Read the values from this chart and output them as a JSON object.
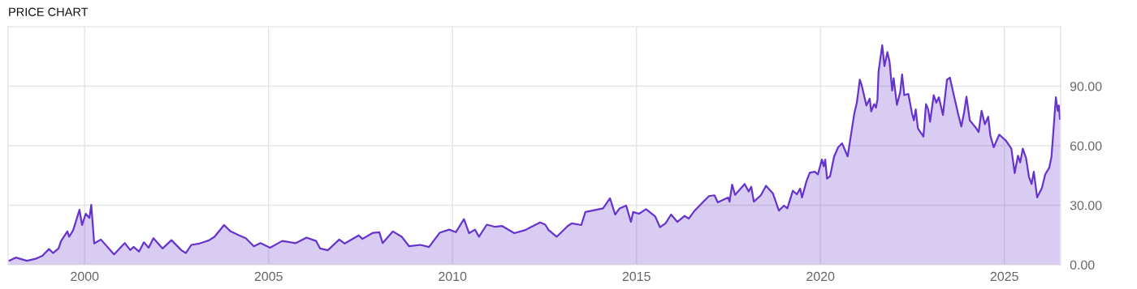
{
  "chart_data": {
    "type": "area",
    "title": "PRICE CHART",
    "x": [
      1997.95,
      1998.13,
      1998.43,
      1998.65,
      1998.85,
      1999.03,
      1999.14,
      1999.29,
      1999.36,
      1999.53,
      1999.58,
      1999.69,
      1999.86,
      1999.93,
      2000.03,
      2000.13,
      2000.18,
      2000.26,
      2000.44,
      2000.8,
      2001.09,
      2001.24,
      2001.33,
      2001.48,
      2001.61,
      2001.74,
      2001.87,
      2002.12,
      2002.36,
      2002.63,
      2002.75,
      2002.9,
      2003.12,
      2003.38,
      2003.53,
      2003.79,
      2003.97,
      2004.2,
      2004.38,
      2004.6,
      2004.78,
      2005.04,
      2005.37,
      2005.74,
      2006.03,
      2006.29,
      2006.4,
      2006.61,
      2006.92,
      2007.07,
      2007.45,
      2007.55,
      2007.84,
      2008.01,
      2008.1,
      2008.38,
      2008.62,
      2008.82,
      2009.13,
      2009.36,
      2009.65,
      2009.91,
      2010.09,
      2010.31,
      2010.45,
      2010.61,
      2010.72,
      2010.93,
      2011.16,
      2011.35,
      2011.68,
      2011.98,
      2012.12,
      2012.38,
      2012.52,
      2012.61,
      2012.83,
      2013.13,
      2013.24,
      2013.5,
      2013.61,
      2013.8,
      2014.09,
      2014.28,
      2014.42,
      2014.54,
      2014.72,
      2014.85,
      2014.91,
      2015.07,
      2015.26,
      2015.51,
      2015.64,
      2015.79,
      2015.94,
      2016.11,
      2016.31,
      2016.42,
      2016.57,
      2016.82,
      2016.97,
      2017.12,
      2017.21,
      2017.49,
      2017.53,
      2017.6,
      2017.68,
      2017.94,
      2018.05,
      2018.12,
      2018.19,
      2018.38,
      2018.52,
      2018.71,
      2018.87,
      2019.01,
      2019.1,
      2019.25,
      2019.36,
      2019.45,
      2019.5,
      2019.62,
      2019.71,
      2019.85,
      2019.93,
      2020.04,
      2020.09,
      2020.13,
      2020.18,
      2020.26,
      2020.37,
      2020.48,
      2020.59,
      2020.74,
      2020.8,
      2020.92,
      2020.99,
      2021.07,
      2021.12,
      2021.25,
      2021.34,
      2021.38,
      2021.46,
      2021.51,
      2021.55,
      2021.58,
      2021.68,
      2021.74,
      2021.82,
      2021.88,
      2021.95,
      2021.99,
      2022.08,
      2022.17,
      2022.22,
      2022.28,
      2022.39,
      2022.49,
      2022.54,
      2022.59,
      2022.65,
      2022.8,
      2022.87,
      2022.93,
      2022.98,
      2023.08,
      2023.15,
      2023.22,
      2023.33,
      2023.44,
      2023.52,
      2023.64,
      2023.74,
      2023.83,
      2023.9,
      2023.97,
      2024.06,
      2024.21,
      2024.3,
      2024.38,
      2024.47,
      2024.56,
      2024.62,
      2024.71,
      2024.86,
      2025.04,
      2025.19,
      2025.28,
      2025.37,
      2025.43,
      2025.5,
      2025.59,
      2025.67,
      2025.74,
      2025.8,
      2025.89,
      2026.02,
      2026.11,
      2026.22,
      2026.28,
      2026.33,
      2026.4,
      2026.45,
      2026.48,
      2026.51
    ],
    "series": [
      {
        "color": "#6633cc",
        "values": [
          2.0,
          3.6,
          2.0,
          2.9,
          4.5,
          7.9,
          5.9,
          8.2,
          12.0,
          16.8,
          14.1,
          17.5,
          27.7,
          20.0,
          25.7,
          23.6,
          30.2,
          10.7,
          12.7,
          5.2,
          10.9,
          7.4,
          9.0,
          6.6,
          11.3,
          8.6,
          13.4,
          8.2,
          12.4,
          7.3,
          5.9,
          10.0,
          10.7,
          12.3,
          14.1,
          20.0,
          16.8,
          14.8,
          13.4,
          9.3,
          10.9,
          8.6,
          12.0,
          10.9,
          13.7,
          12.0,
          8.2,
          7.3,
          12.7,
          10.7,
          14.8,
          13.0,
          16.1,
          16.4,
          10.9,
          16.8,
          14.1,
          9.3,
          10.0,
          8.9,
          16.1,
          17.7,
          16.4,
          23.0,
          15.9,
          17.7,
          14.1,
          20.2,
          19.1,
          19.5,
          15.9,
          17.5,
          18.9,
          21.3,
          20.2,
          17.5,
          14.1,
          19.5,
          20.9,
          20.0,
          26.6,
          27.3,
          28.4,
          33.5,
          25.3,
          28.4,
          29.8,
          21.6,
          26.6,
          25.7,
          28.0,
          24.3,
          18.9,
          20.9,
          25.3,
          21.6,
          24.6,
          23.2,
          27.0,
          31.8,
          34.6,
          35.0,
          31.4,
          33.9,
          31.8,
          40.4,
          35.2,
          40.7,
          36.9,
          39.3,
          31.8,
          35.0,
          39.8,
          35.9,
          27.3,
          29.8,
          28.4,
          37.3,
          35.5,
          38.4,
          33.9,
          42.1,
          46.4,
          46.9,
          45.5,
          53.0,
          49.6,
          53.0,
          43.4,
          44.5,
          54.4,
          59.2,
          61.2,
          54.6,
          61.9,
          76.2,
          81.7,
          93.3,
          90.6,
          80.3,
          83.7,
          77.3,
          81.0,
          79.2,
          83.3,
          97.4,
          110.7,
          100.1,
          107.2,
          102.2,
          87.8,
          94.0,
          80.6,
          87.2,
          96.0,
          85.5,
          86.1,
          76.2,
          72.8,
          78.3,
          68.7,
          64.6,
          81.0,
          78.3,
          72.1,
          85.5,
          81.7,
          84.4,
          75.5,
          93.3,
          94.3,
          84.4,
          76.2,
          69.7,
          76.2,
          84.7,
          72.8,
          69.4,
          66.9,
          77.6,
          70.8,
          74.6,
          65.0,
          59.2,
          65.6,
          62.6,
          58.5,
          46.2,
          55.0,
          51.6,
          58.5,
          53.7,
          44.1,
          40.7,
          46.9,
          33.9,
          38.7,
          45.5,
          48.9,
          54.4,
          66.7,
          84.4,
          77.6,
          80.3,
          73.5
        ]
      }
    ],
    "xlim": [
      1997.92,
      2026.53
    ],
    "xticks": [
      2000,
      2005,
      2010,
      2015,
      2020,
      2025
    ],
    "ylim": [
      0,
      120
    ],
    "yticks": [
      {
        "value": 0,
        "label": "0.00"
      },
      {
        "value": 30,
        "label": "30.00"
      },
      {
        "value": 60,
        "label": "60.00"
      },
      {
        "value": 90,
        "label": "90.00"
      }
    ],
    "grid": true,
    "legend": false
  }
}
